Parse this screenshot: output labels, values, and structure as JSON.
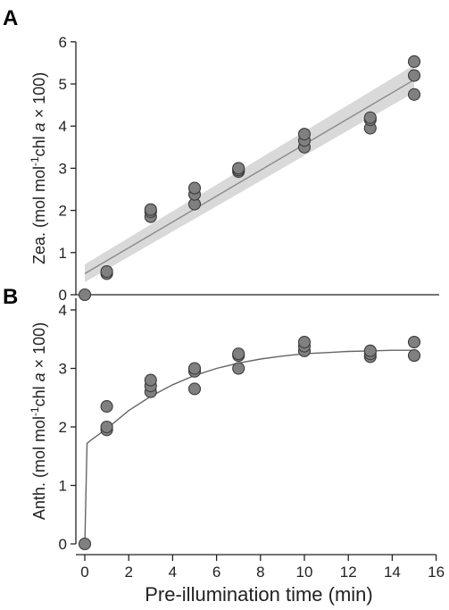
{
  "chart_data": [
    {
      "panel": "A",
      "type": "scatter",
      "xlabel": "",
      "ylabel": "Zea. (mol mol-1chl a × 100)",
      "ylabel_parts": {
        "pre": "Zea. (mol mol",
        "sup": "-1",
        "mid": "chl ",
        "ital": "a",
        "post": " × 100)"
      },
      "xlim": [
        0,
        16
      ],
      "ylim": [
        0,
        6
      ],
      "yticks": [
        0,
        1,
        2,
        3,
        4,
        5,
        6
      ],
      "points": [
        {
          "x": 0,
          "y": 0
        },
        {
          "x": 1,
          "y": 0.5
        },
        {
          "x": 1,
          "y": 0.55
        },
        {
          "x": 3,
          "y": 1.85
        },
        {
          "x": 3,
          "y": 1.97
        },
        {
          "x": 3,
          "y": 2.02
        },
        {
          "x": 5,
          "y": 2.15
        },
        {
          "x": 5,
          "y": 2.38
        },
        {
          "x": 5,
          "y": 2.53
        },
        {
          "x": 7,
          "y": 2.92
        },
        {
          "x": 7,
          "y": 2.96
        },
        {
          "x": 7,
          "y": 3.0
        },
        {
          "x": 10,
          "y": 3.5
        },
        {
          "x": 10,
          "y": 3.66
        },
        {
          "x": 10,
          "y": 3.81
        },
        {
          "x": 13,
          "y": 3.95
        },
        {
          "x": 13,
          "y": 4.15
        },
        {
          "x": 13,
          "y": 4.2
        },
        {
          "x": 15,
          "y": 4.75
        },
        {
          "x": 15,
          "y": 5.2
        },
        {
          "x": 15,
          "y": 5.53
        }
      ],
      "fit": {
        "type": "linear",
        "x": [
          0,
          15
        ],
        "y": [
          0.5,
          5.1
        ]
      },
      "confidence_band": {
        "x": [
          0,
          15
        ],
        "lower": [
          0.3,
          4.8
        ],
        "upper": [
          0.72,
          5.45
        ]
      },
      "colors": {
        "marker_fill": "#808080",
        "marker_edge": "#3a3a3a",
        "fit_line": "#8a8a8a",
        "band": "#d9d9d9"
      }
    },
    {
      "panel": "B",
      "type": "scatter",
      "xlabel": "Pre-illumination time (min)",
      "ylabel": "Anth. (mol mol-1chl a × 100)",
      "ylabel_parts": {
        "pre": "Anth. (mol mol",
        "sup": "-1",
        "mid": "chl ",
        "ital": "a",
        "post": " × 100)"
      },
      "xlim": [
        0,
        16
      ],
      "ylim": [
        0,
        4.2
      ],
      "xticks": [
        0,
        2,
        4,
        6,
        8,
        10,
        12,
        14,
        16
      ],
      "yticks": [
        0,
        1,
        2,
        3,
        4
      ],
      "points": [
        {
          "x": 0,
          "y": 0
        },
        {
          "x": 1,
          "y": 1.95
        },
        {
          "x": 1,
          "y": 2.0
        },
        {
          "x": 1,
          "y": 2.35
        },
        {
          "x": 3,
          "y": 2.6
        },
        {
          "x": 3,
          "y": 2.7
        },
        {
          "x": 3,
          "y": 2.8
        },
        {
          "x": 5,
          "y": 2.65
        },
        {
          "x": 5,
          "y": 2.95
        },
        {
          "x": 5,
          "y": 3.0
        },
        {
          "x": 7,
          "y": 3.0
        },
        {
          "x": 7,
          "y": 3.22
        },
        {
          "x": 7,
          "y": 3.25
        },
        {
          "x": 10,
          "y": 3.3
        },
        {
          "x": 10,
          "y": 3.38
        },
        {
          "x": 10,
          "y": 3.45
        },
        {
          "x": 13,
          "y": 3.2
        },
        {
          "x": 13,
          "y": 3.25
        },
        {
          "x": 13,
          "y": 3.3
        },
        {
          "x": 15,
          "y": 3.22
        },
        {
          "x": 15,
          "y": 3.45
        }
      ],
      "fit": {
        "type": "saturating",
        "x": [
          0,
          0.1,
          0.3,
          1,
          2,
          3,
          4,
          5,
          6,
          7,
          8,
          9,
          10,
          11,
          12,
          13,
          14,
          15
        ],
        "y": [
          0,
          1.72,
          1.78,
          1.97,
          2.28,
          2.52,
          2.72,
          2.88,
          3.0,
          3.09,
          3.16,
          3.21,
          3.25,
          3.27,
          3.29,
          3.3,
          3.31,
          3.31
        ]
      },
      "colors": {
        "marker_fill": "#808080",
        "marker_edge": "#3a3a3a",
        "fit_line": "#666666"
      }
    }
  ],
  "panels": {
    "a_label": "A",
    "b_label": "B"
  },
  "axes": {
    "xtitle": "Pre-illumination time (min)"
  }
}
